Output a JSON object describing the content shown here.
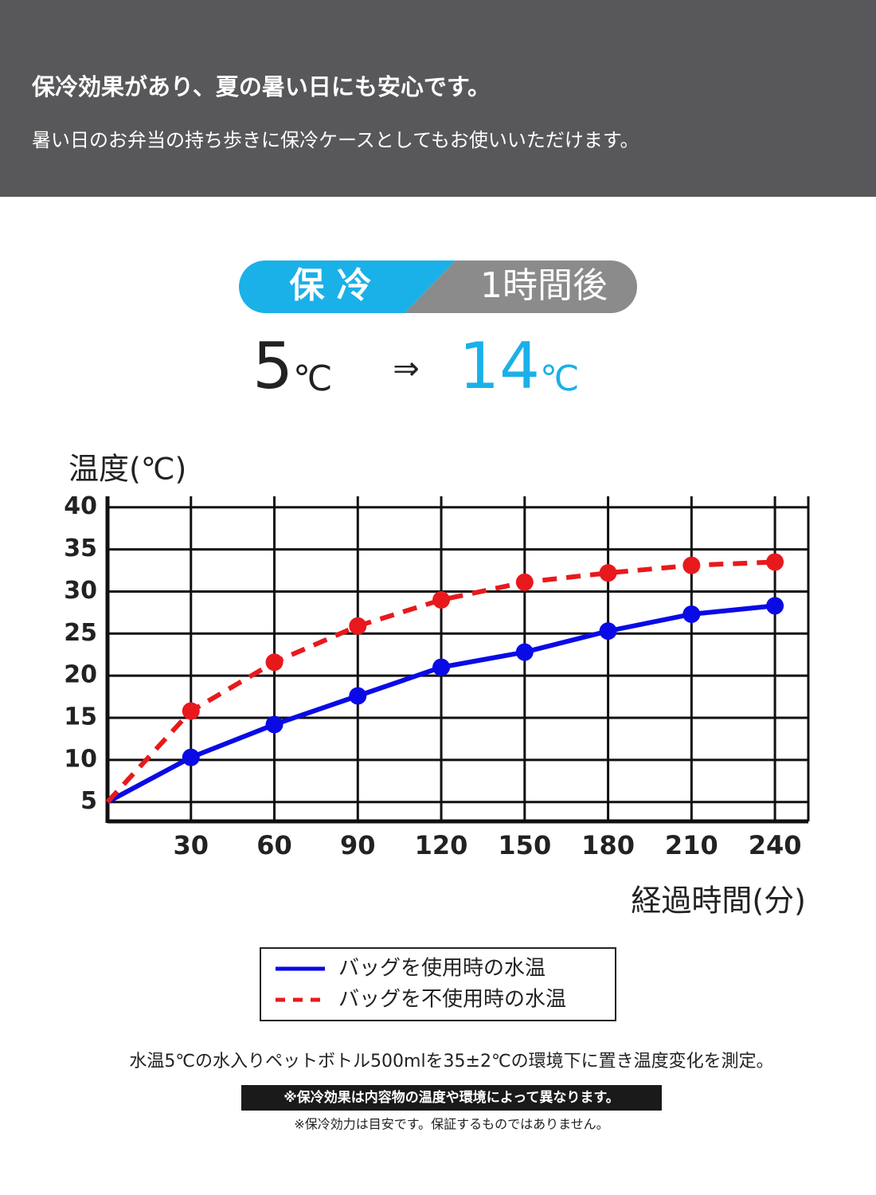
{
  "header": {
    "title": "保冷効果があり、夏の暑い日にも安心です。",
    "subtitle": "暑い日のお弁当の持ち歩きに保冷ケースとしてもお使いいただけます。"
  },
  "badge": {
    "left": "保 冷",
    "right": "1時間後"
  },
  "temperatures": {
    "from": "5",
    "unit": "℃",
    "arrow": "⇒",
    "to": "14"
  },
  "chart_data": {
    "type": "line",
    "y_label": "温度(℃)",
    "x_label": "経過時間(分)",
    "x": [
      0,
      30,
      60,
      90,
      120,
      150,
      180,
      210,
      240
    ],
    "series": [
      {
        "name": "バッグを使用時の水温",
        "color": "#0a0ae6",
        "dashed": false,
        "values": [
          5,
          10.3,
          14.2,
          17.6,
          21.0,
          22.8,
          25.3,
          27.3,
          28.3
        ]
      },
      {
        "name": "バッグを不使用時の水温",
        "color": "#e8191c",
        "dashed": true,
        "values": [
          5,
          15.8,
          21.6,
          25.9,
          29.0,
          31.1,
          32.2,
          33.1,
          33.5
        ]
      }
    ],
    "xlim": [
      0,
      252
    ],
    "ylim": [
      2.7,
      41.3
    ],
    "xticks": [
      30,
      60,
      90,
      120,
      150,
      180,
      210,
      240
    ],
    "yticks": [
      5,
      10,
      15,
      20,
      25,
      30,
      35,
      40
    ],
    "grid": true
  },
  "notes": {
    "measurement": "水温5℃の水入りペットボトル500mlを35±2℃の環境下に置き温度変化を測定。",
    "warning": "※保冷効果は内容物の温度や環境によって異なります。",
    "disclaimer": "※保冷効力は目安です。保証するものではありません。"
  }
}
